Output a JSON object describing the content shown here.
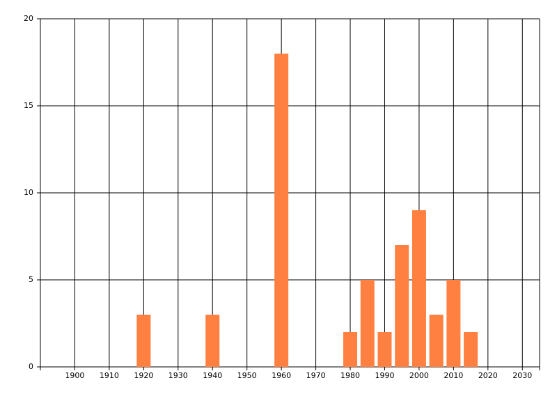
{
  "chart_data": {
    "type": "bar",
    "x": [
      1920,
      1940,
      1960,
      1980,
      1985,
      1990,
      1995,
      2000,
      2005,
      2010,
      2015
    ],
    "values": [
      3,
      3,
      18,
      2,
      5,
      2,
      7,
      9,
      3,
      5,
      2
    ],
    "color": "#ff8040",
    "xlim": [
      1890,
      2035
    ],
    "xticks": [
      1900,
      1910,
      1920,
      1930,
      1940,
      1950,
      1960,
      1970,
      1980,
      1990,
      2000,
      2010,
      2020,
      2030
    ],
    "ylim": [
      0,
      20
    ],
    "yticks": [
      0,
      5,
      10,
      15,
      20
    ],
    "grid": true
  }
}
